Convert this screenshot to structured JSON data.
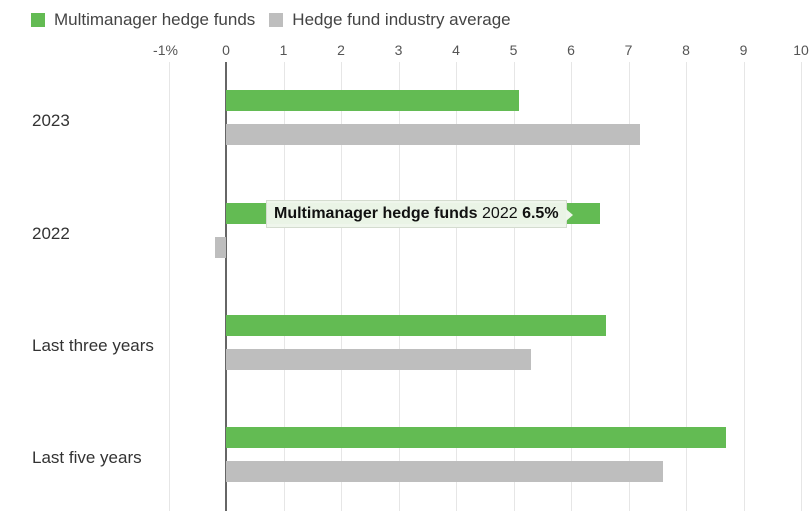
{
  "legend": [
    {
      "label": "Multimanager hedge funds",
      "color": "#63bb53"
    },
    {
      "label": "Hedge fund industry average",
      "color": "#bebebe"
    }
  ],
  "axis": {
    "ticks": [
      "-1%",
      "0",
      "1",
      "2",
      "3",
      "4",
      "5",
      "6",
      "7",
      "8",
      "9",
      "10"
    ]
  },
  "categories": [
    "2023",
    "2022",
    "Last three years",
    "Last five years"
  ],
  "tooltip": {
    "series": "Multimanager hedge funds",
    "category": "2022",
    "value": "6.5%"
  },
  "chart_data": {
    "type": "bar",
    "orientation": "horizontal",
    "categories": [
      "2023",
      "2022",
      "Last three years",
      "Last five years"
    ],
    "series": [
      {
        "name": "Multimanager hedge funds",
        "color": "#63bb53",
        "values": [
          5.1,
          6.5,
          6.6,
          8.7
        ]
      },
      {
        "name": "Hedge fund industry average",
        "color": "#bebebe",
        "values": [
          7.2,
          -0.2,
          5.3,
          7.6
        ]
      }
    ],
    "title": "",
    "xlabel": "",
    "ylabel": "",
    "xlim": [
      -1,
      10
    ],
    "x_tick_labels": [
      "-1%",
      "0",
      "1",
      "2",
      "3",
      "4",
      "5",
      "6",
      "7",
      "8",
      "9",
      "10"
    ],
    "grid": true,
    "legend_position": "top-left",
    "annotations": [
      "Tooltip: Multimanager hedge funds 2022 6.5%"
    ]
  }
}
